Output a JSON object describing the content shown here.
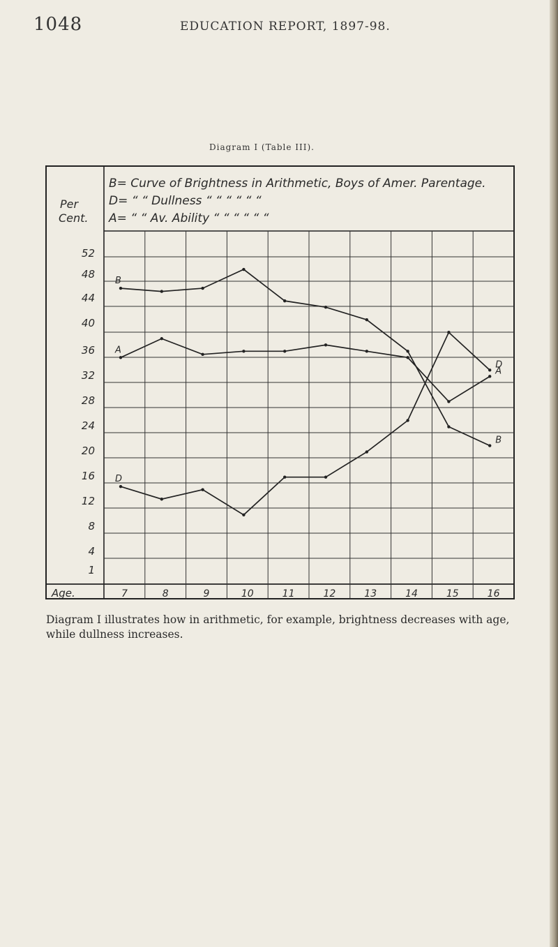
{
  "page": {
    "number": "1048",
    "running_head": "EDUCATION REPORT, 1897-98.",
    "diagram_title": "Diagram I (Table III).",
    "caption": "Diagram I illustrates how in arithmetic, for example, brightness decreases with age, while dullness increases."
  },
  "chart_data": {
    "type": "line",
    "legend": [
      {
        "key": "B=",
        "rest": [
          "Curve",
          "of Brightness",
          "in Arithmetic,",
          "Boys",
          "of Amer. Parentage."
        ]
      },
      {
        "key": "D=",
        "rest": [
          "“",
          "“ Dullness",
          "“",
          "“",
          "“  “  “   “"
        ]
      },
      {
        "key": "A=",
        "rest": [
          "“",
          "“ Av. Ability",
          "“",
          "“",
          "“  “  “   “"
        ]
      }
    ],
    "ylabel": [
      "Per",
      "Cent."
    ],
    "xlabel": "Age.",
    "categories": [
      "7",
      "8",
      "9",
      "10",
      "11",
      "12",
      "13",
      "14",
      "15",
      "16"
    ],
    "y_ticks": [
      "52",
      "48",
      "44",
      "40",
      "36",
      "32",
      "28",
      "24",
      "20",
      "16",
      "12",
      "8",
      "4",
      "1"
    ],
    "ylim": [
      0,
      54
    ],
    "grid": true,
    "series": [
      {
        "name": "B",
        "color": "#222222",
        "values": [
          47,
          46.5,
          47,
          50,
          45,
          44,
          42,
          37,
          25,
          22
        ]
      },
      {
        "name": "A",
        "color": "#222222",
        "values": [
          36,
          39,
          36.5,
          37,
          37,
          38,
          37,
          36,
          29,
          33
        ]
      },
      {
        "name": "D",
        "color": "#222222",
        "values": [
          15.5,
          13.5,
          15,
          11,
          17,
          17,
          21,
          26,
          40,
          34
        ]
      }
    ]
  }
}
